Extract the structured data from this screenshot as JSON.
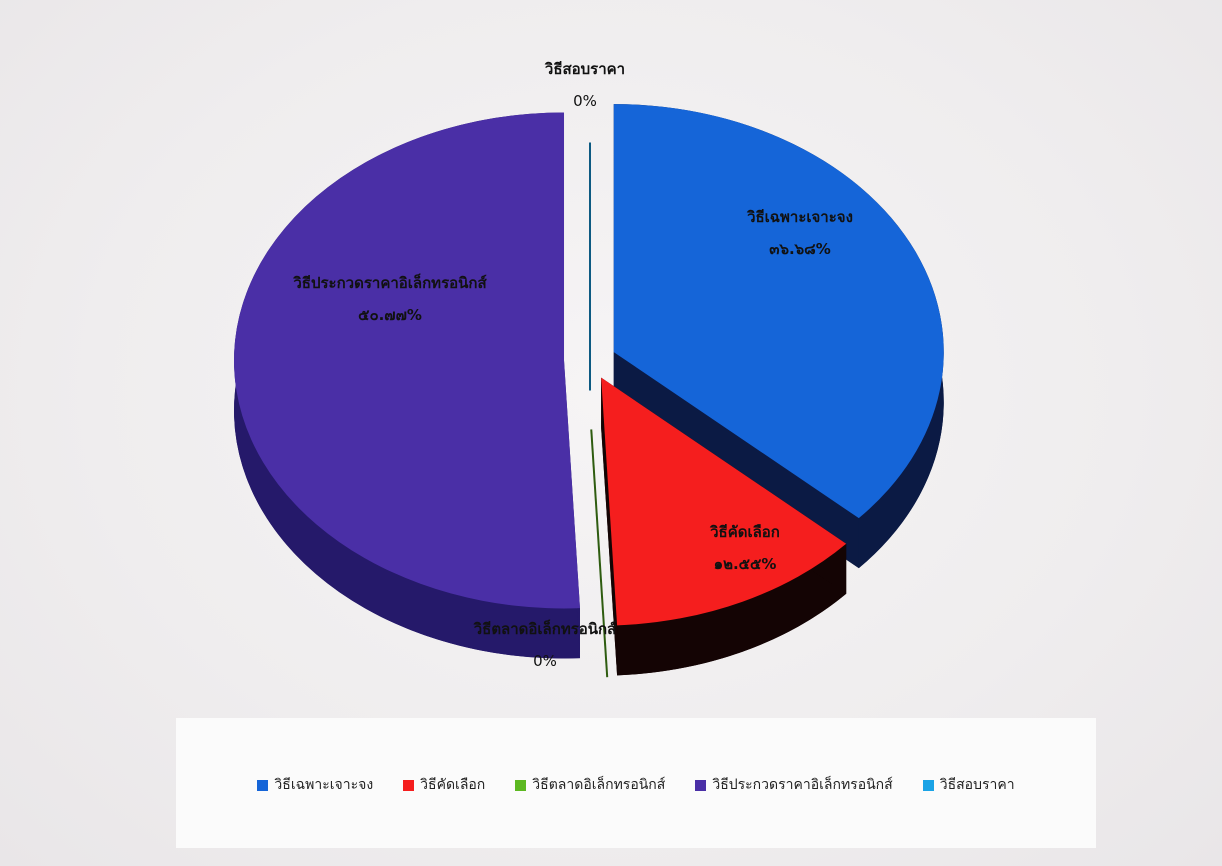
{
  "chart_data": {
    "type": "pie",
    "categories": [
      "วิธีเฉพาะเจาะจง",
      "วิธีคัดเลือก",
      "วิธีตลาดอิเล็กทรอนิกส์",
      "วิธีประกวดราคาอิเล็กทรอนิกส์",
      "วิธีสอบราคา"
    ],
    "values": [
      36.68,
      12.55,
      0,
      50.77,
      0
    ],
    "data_labels": [
      {
        "name": "วิธีเฉพาะเจาะจง",
        "value": "๓๖.๖๘%"
      },
      {
        "name": "วิธีคัดเลือก",
        "value": "๑๒.๕๕%"
      },
      {
        "name": "วิธีตลาดอิเล็กทรอนิกส์",
        "value": "0%"
      },
      {
        "name": "วิธีประกวดราคาอิเล็กทรอนิกส์",
        "value": "๕๐.๗๗%"
      },
      {
        "name": "วิธีสอบราคา",
        "value": "0%"
      }
    ],
    "colors": [
      "#1565d8",
      "#f51e1e",
      "#5cb821",
      "#4a2fa6",
      "#1aa3e6"
    ],
    "side_colors": [
      "#0b1a44",
      "#140404",
      "#2e5c10",
      "#25196a",
      "#0d5a82"
    ],
    "legend_position": "bottom",
    "style": "3d-exploded"
  }
}
